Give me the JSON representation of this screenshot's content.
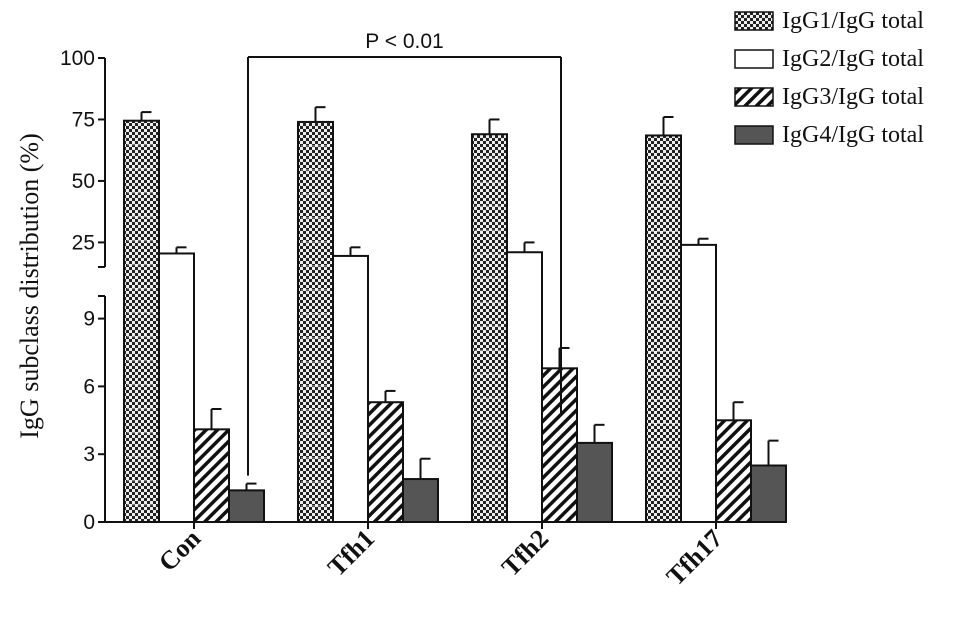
{
  "chart_data": {
    "type": "bar",
    "ylabel": "IgG subclass distribution (%)",
    "xlabel": "",
    "categories": [
      "Con",
      "Tfh1",
      "Tfh2",
      "Tfh17"
    ],
    "axis_break": {
      "lower_range": [
        0,
        10
      ],
      "upper_range": [
        15,
        100
      ],
      "lower_ticks": [
        0,
        3,
        6,
        9
      ],
      "upper_ticks": [
        25,
        50,
        75,
        100
      ]
    },
    "series": [
      {
        "name": "IgG1/IgG total",
        "values": [
          74.5,
          74,
          69,
          68.5
        ],
        "errors": [
          3.5,
          6,
          6,
          7.5
        ],
        "pattern": "checker"
      },
      {
        "name": "IgG2/IgG total",
        "values": [
          20.5,
          19.5,
          21,
          24
        ],
        "errors": [
          2.5,
          3.5,
          4,
          2.5
        ],
        "pattern": "white"
      },
      {
        "name": "IgG3/IgG total",
        "values": [
          4.1,
          5.3,
          6.8,
          4.5
        ],
        "errors": [
          0.9,
          0.5,
          0.9,
          0.8
        ],
        "pattern": "hatch"
      },
      {
        "name": "IgG4/IgG total",
        "values": [
          1.4,
          1.9,
          3.5,
          2.5
        ],
        "errors": [
          0.3,
          0.9,
          0.8,
          1.1
        ],
        "pattern": "dark"
      }
    ],
    "annotations": [
      {
        "text": "P < 0.01",
        "from_category": "Con",
        "to_category": "Tfh2"
      }
    ],
    "legend_position": "top-right",
    "grid": false,
    "colors": {
      "ink": "#111111",
      "dark_fill": "#555555",
      "white_fill": "#ffffff"
    }
  }
}
